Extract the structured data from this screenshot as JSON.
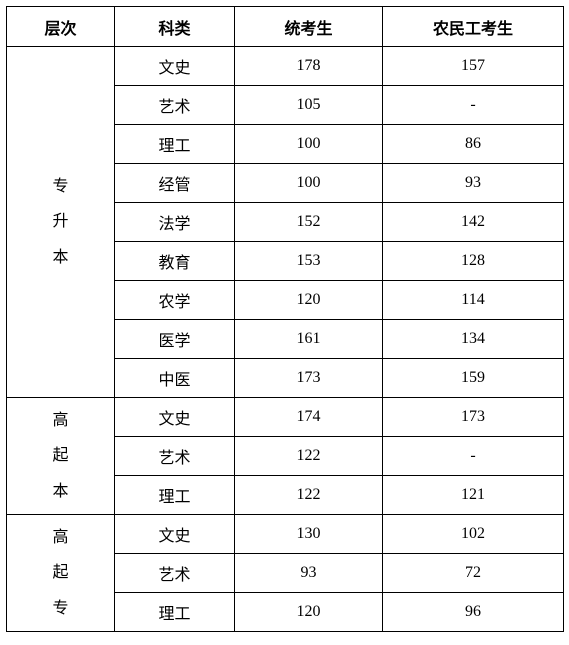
{
  "headers": {
    "level": "层次",
    "category": "科类",
    "score1": "统考生",
    "score2": "农民工考生"
  },
  "groups": [
    {
      "label": "专升本",
      "label_chars": [
        "专",
        "升",
        "本"
      ],
      "rows": [
        {
          "category": "文史",
          "score1": "178",
          "score2": "157"
        },
        {
          "category": "艺术",
          "score1": "105",
          "score2": "-"
        },
        {
          "category": "理工",
          "score1": "100",
          "score2": "86"
        },
        {
          "category": "经管",
          "score1": "100",
          "score2": "93"
        },
        {
          "category": "法学",
          "score1": "152",
          "score2": "142"
        },
        {
          "category": "教育",
          "score1": "153",
          "score2": "128"
        },
        {
          "category": "农学",
          "score1": "120",
          "score2": "114"
        },
        {
          "category": "医学",
          "score1": "161",
          "score2": "134"
        },
        {
          "category": "中医",
          "score1": "173",
          "score2": "159"
        }
      ]
    },
    {
      "label": "高起本",
      "label_chars": [
        "高",
        "起",
        "本"
      ],
      "rows": [
        {
          "category": "文史",
          "score1": "174",
          "score2": "173"
        },
        {
          "category": "艺术",
          "score1": "122",
          "score2": "-"
        },
        {
          "category": "理工",
          "score1": "122",
          "score2": "121"
        }
      ]
    },
    {
      "label": "高起专",
      "label_chars": [
        "高",
        "起",
        "专"
      ],
      "rows": [
        {
          "category": "文史",
          "score1": "130",
          "score2": "102"
        },
        {
          "category": "艺术",
          "score1": "93",
          "score2": "72"
        },
        {
          "category": "理工",
          "score1": "120",
          "score2": "96"
        }
      ]
    }
  ]
}
